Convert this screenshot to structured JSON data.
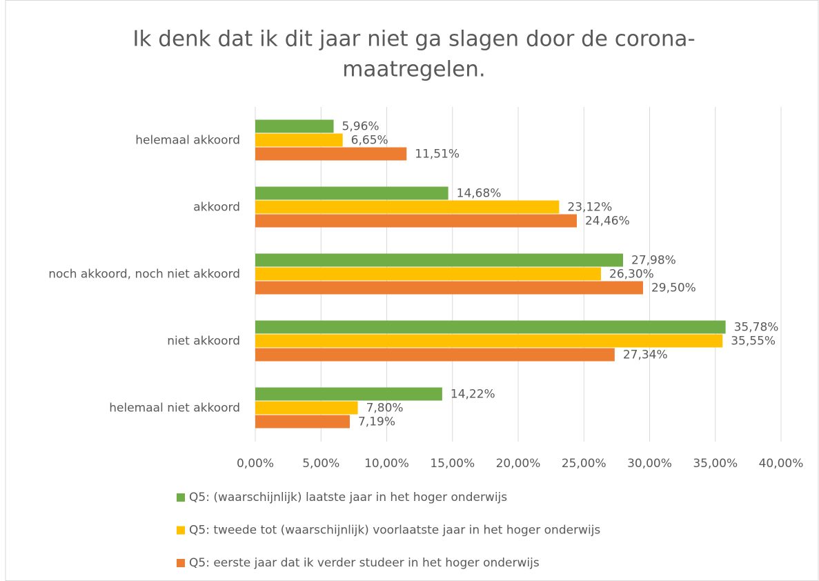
{
  "chart_data": {
    "type": "barh",
    "title": [
      "Ik denk dat ik dit jaar niet ga slagen door de corona-",
      "maatregelen."
    ],
    "categories": [
      "helemaal akkoord",
      "akkoord",
      "noch akkoord, noch niet akkoord",
      "niet akkoord",
      "helemaal niet akkoord"
    ],
    "series": [
      {
        "name": "Q5: (waarschijnlijk) laatste jaar in het hoger onderwijs",
        "color": "#70ad47",
        "values": [
          5.96,
          14.68,
          27.98,
          35.78,
          14.22
        ],
        "value_labels": [
          "5,96%",
          "14,68%",
          "27,98%",
          "35,78%",
          "14,22%"
        ]
      },
      {
        "name": "Q5: tweede tot (waarschijnlijk) voorlaatste jaar in het hoger onderwijs",
        "color": "#ffc000",
        "values": [
          6.65,
          23.12,
          26.3,
          35.55,
          7.8
        ],
        "value_labels": [
          "6,65%",
          "23,12%",
          "26,30%",
          "35,55%",
          "7,80%"
        ]
      },
      {
        "name": "Q5: eerste jaar dat ik verder studeer in het hoger onderwijs",
        "color": "#ed7d31",
        "values": [
          11.51,
          24.46,
          29.5,
          27.34,
          7.19
        ],
        "value_labels": [
          "11,51%",
          "24,46%",
          "29,50%",
          "27,34%",
          "7,19%"
        ]
      }
    ],
    "xlim": [
      0,
      40
    ],
    "xticks": [
      {
        "value": 0,
        "label": "0,00%"
      },
      {
        "value": 5,
        "label": "5,00%"
      },
      {
        "value": 10,
        "label": "10,00%"
      },
      {
        "value": 15,
        "label": "15,00%"
      },
      {
        "value": 20,
        "label": "20,00%"
      },
      {
        "value": 25,
        "label": "25,00%"
      },
      {
        "value": 30,
        "label": "30,00%"
      },
      {
        "value": 35,
        "label": "35,00%"
      },
      {
        "value": 40,
        "label": "40,00%"
      }
    ],
    "grid": true,
    "legend": "bottom"
  }
}
